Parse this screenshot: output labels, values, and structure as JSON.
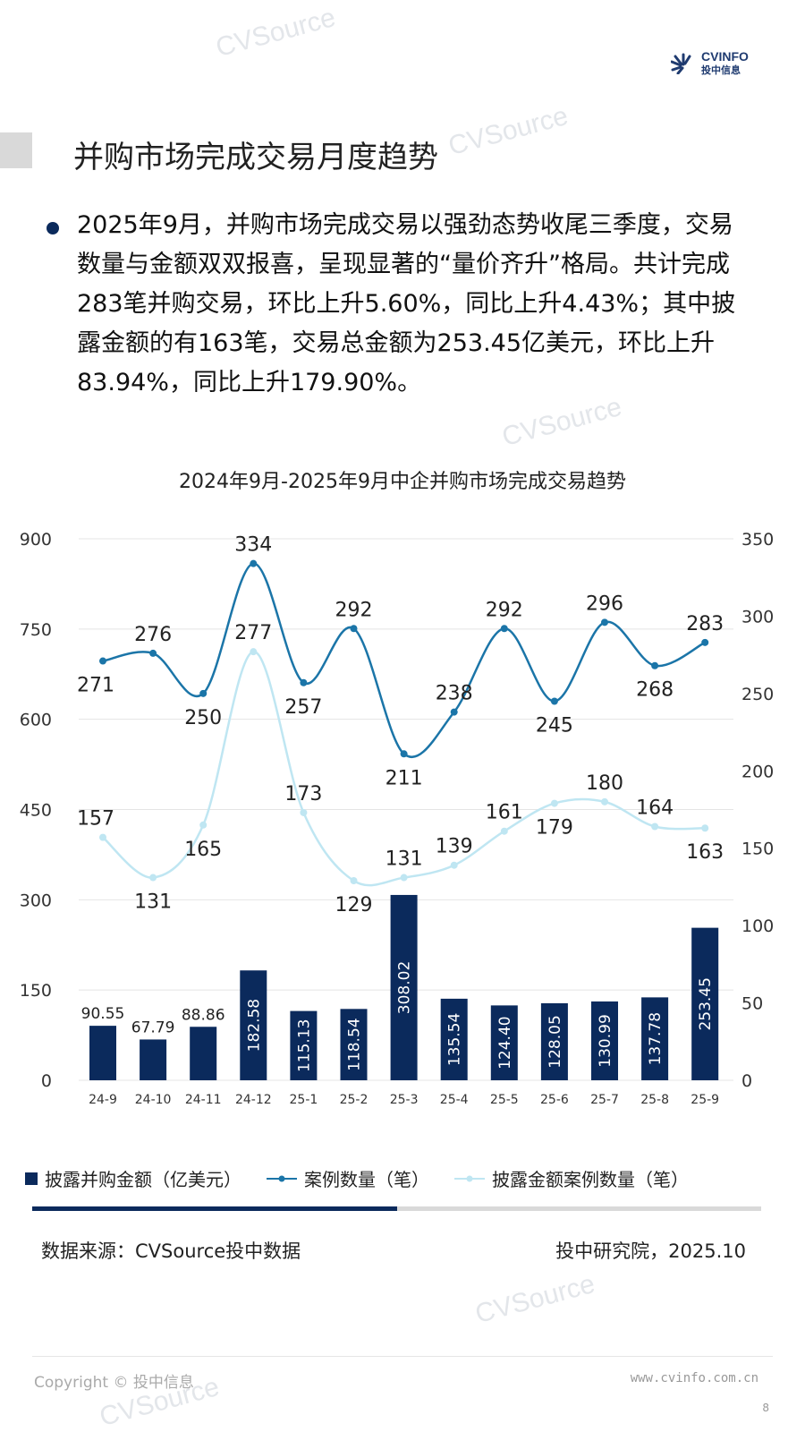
{
  "header": {
    "logo_text": "CVINFO",
    "logo_sub": "投中信息",
    "watermark": "CVSource"
  },
  "title": "并购市场完成交易月度趋势",
  "paragraph": "2025年9月，并购市场完成交易以强劲态势收尾三季度，交易数量与金额双双报喜，呈现显著的“量价齐升”格局。共计完成283笔并购交易，环比上升5.60%，同比上升4.43%；其中披露金额的有163笔，交易总金额为253.45亿美元，环比上升83.94%，同比上升179.90%。",
  "chart_data": {
    "type": "bar+line",
    "title": "2024年9月-2025年9月中企并购市场完成交易趋势",
    "categories": [
      "24-9",
      "24-10",
      "24-11",
      "24-12",
      "25-1",
      "25-2",
      "25-3",
      "25-4",
      "25-5",
      "25-6",
      "25-7",
      "25-8",
      "25-9"
    ],
    "left_axis": {
      "ylim": [
        0,
        900
      ],
      "ticks": [
        "0",
        "150",
        "300",
        "450",
        "600",
        "750",
        "900"
      ]
    },
    "right_axis": {
      "ylim": [
        0,
        350
      ],
      "ticks": [
        "0",
        "50",
        "100",
        "150",
        "200",
        "250",
        "300",
        "350"
      ]
    },
    "grid": true,
    "series": [
      {
        "name": "披露并购金额（亿美元）",
        "type": "bar",
        "axis": "left",
        "color": "#0b2a5c",
        "values": [
          90.55,
          67.79,
          88.86,
          182.58,
          115.13,
          118.54,
          308.02,
          135.54,
          124.4,
          128.05,
          130.99,
          137.78,
          253.45
        ],
        "labels": [
          "90.55",
          "67.79",
          "88.86",
          "182.58",
          "115.13",
          "118.54",
          "308.02",
          "135.54",
          "124.40",
          "128.05",
          "130.99",
          "137.78",
          "253.45"
        ]
      },
      {
        "name": "案例数量（笔）",
        "type": "line",
        "axis": "right",
        "color": "#1b75a8",
        "values": [
          271,
          276,
          250,
          334,
          257,
          292,
          211,
          238,
          292,
          245,
          296,
          268,
          283
        ]
      },
      {
        "name": "披露金额案例数量（笔）",
        "type": "line",
        "axis": "right",
        "color": "#bfe6f2",
        "values": [
          157,
          131,
          165,
          277,
          173,
          129,
          131,
          139,
          161,
          179,
          180,
          164,
          163
        ]
      }
    ],
    "legend_position": "bottom"
  },
  "progress": {
    "fraction": 0.5
  },
  "footer": {
    "source": "数据来源：CVSource投中数据",
    "org": "投中研究院，2025.10",
    "copyright": "Copyright © 投中信息",
    "url": "www.cvinfo.com.cn",
    "page": "8"
  }
}
